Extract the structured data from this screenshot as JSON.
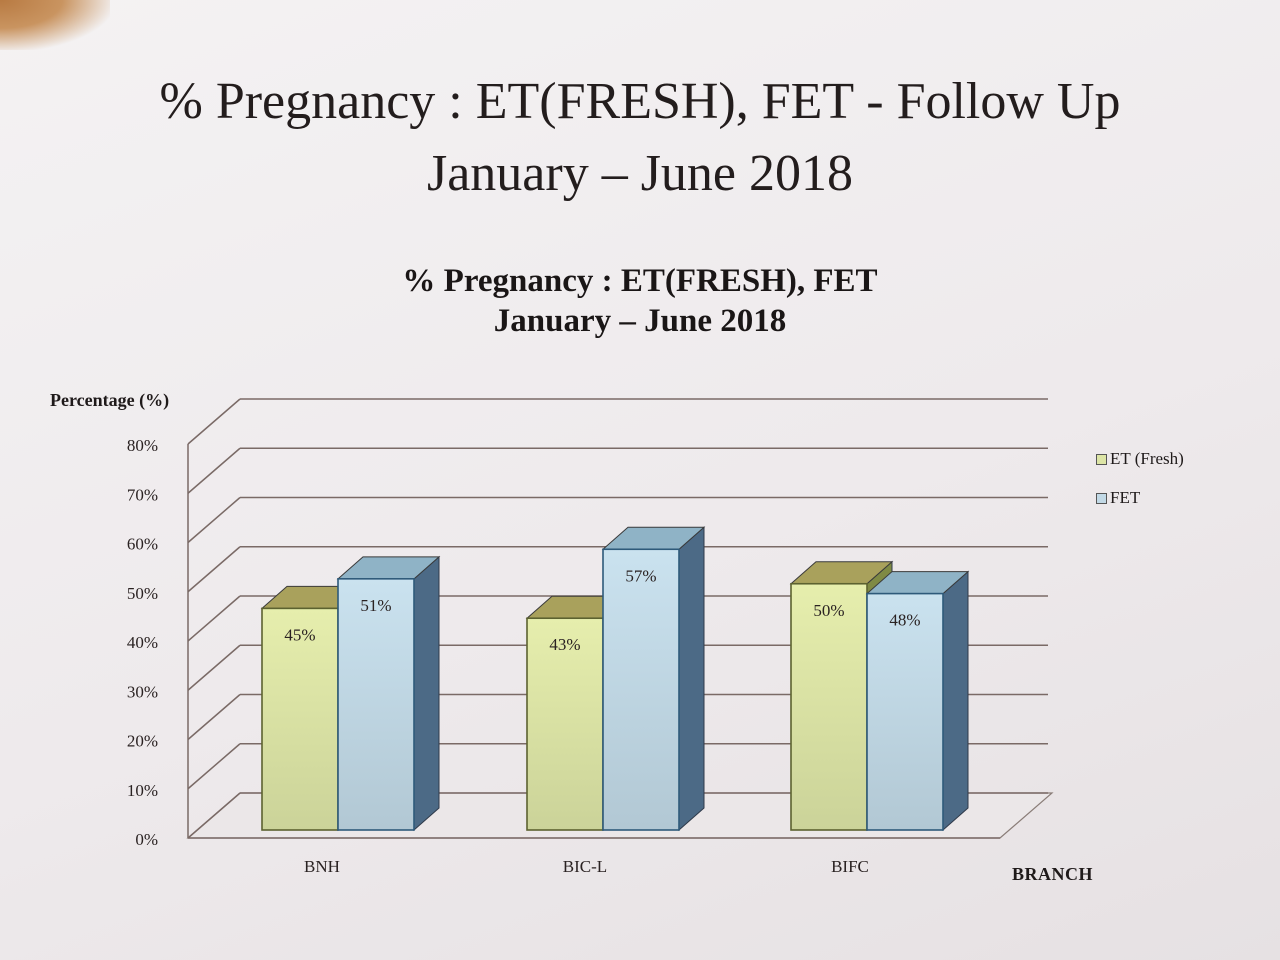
{
  "slide": {
    "title_line1": "% Pregnancy : ET(FRESH), FET - Follow Up",
    "title_line2": "January – June 2018"
  },
  "chart_data": {
    "type": "bar",
    "title": "% Pregnancy : ET(FRESH), FET",
    "subtitle": "January – June 2018",
    "ylabel": "Percentage (%)",
    "xlabel": "BRANCH",
    "ylim": [
      0,
      80
    ],
    "yticks": [
      "0%",
      "10%",
      "20%",
      "30%",
      "40%",
      "50%",
      "60%",
      "70%",
      "80%"
    ],
    "categories": [
      "BNH",
      "BIC-L",
      "BIFC"
    ],
    "series": [
      {
        "name": "ET (Fresh)",
        "values": [
          45,
          43,
          50
        ],
        "labels": [
          "45%",
          "43%",
          "50%"
        ],
        "color": "#dde5a6"
      },
      {
        "name": "FET",
        "values": [
          51,
          57,
          48
        ],
        "labels": [
          "51%",
          "57%",
          "48%"
        ],
        "color": "#c2d9e6"
      }
    ],
    "legend_position": "right",
    "grid": true,
    "style": "3d"
  }
}
